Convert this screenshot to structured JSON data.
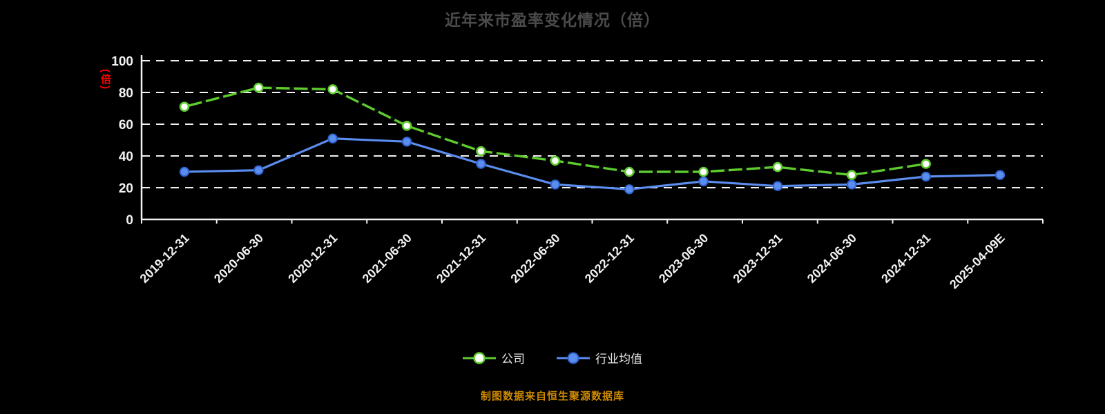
{
  "footer_note": "制图数据来自恒生聚源数据库",
  "chart_data": {
    "type": "line",
    "title": "近年来市盈率变化情况（倍）",
    "ylabel": "(倍)",
    "ylim": [
      0,
      100
    ],
    "yticks": [
      0,
      20,
      40,
      60,
      80,
      100
    ],
    "grid": "horizontal-dashed",
    "legend_position": "bottom",
    "categories": [
      "2019-12-31",
      "2020-06-30",
      "2020-12-31",
      "2021-06-30",
      "2021-12-31",
      "2022-06-30",
      "2022-12-31",
      "2023-06-30",
      "2023-12-31",
      "2024-06-30",
      "2024-12-31",
      "2025-04-09E"
    ],
    "series": [
      {
        "name": "公司",
        "color": "#5ecb2f",
        "marker": "hollow-circle",
        "line_style": "solid-with-dark-dashes",
        "values": [
          71,
          83,
          82,
          59,
          43,
          37,
          30,
          30,
          33,
          28,
          35,
          null
        ]
      },
      {
        "name": "行业均值",
        "color": "#5b8def",
        "edge_color": "#2f63cf",
        "marker": "filled-circle",
        "line_style": "solid",
        "values": [
          30,
          31,
          51,
          49,
          35,
          22,
          19,
          24,
          21,
          22,
          27,
          28
        ]
      }
    ],
    "colors": {
      "axis": "#f2f2f2",
      "grid": "#f2f2f2",
      "title": "#4b4b4b",
      "ylabel": "#ff0000",
      "footer": "#cf8a00",
      "background": "#000000"
    }
  }
}
